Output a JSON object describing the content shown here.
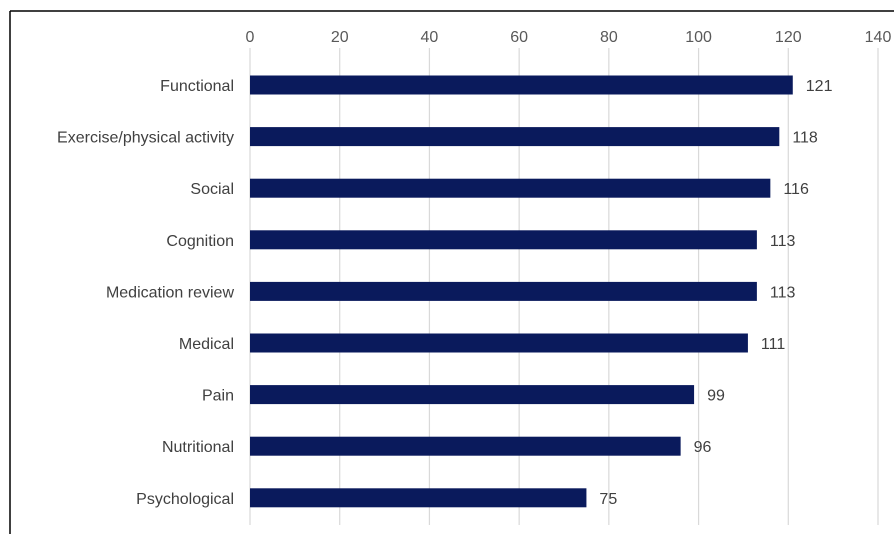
{
  "chart_data": {
    "type": "bar",
    "orientation": "horizontal",
    "categories": [
      "Functional",
      "Exercise/physical activity",
      "Social",
      "Cognition",
      "Medication review",
      "Medical",
      "Pain",
      "Nutritional",
      "Psychological"
    ],
    "values": [
      121,
      118,
      116,
      113,
      113,
      111,
      99,
      96,
      75
    ],
    "xlim": [
      0,
      140
    ],
    "xticks": [
      0,
      20,
      40,
      60,
      80,
      100,
      120,
      140
    ],
    "x_axis_position": "top",
    "grid": true,
    "data_labels": true,
    "bar_color": "#0a1a5c",
    "grid_color": "#d9d9d9"
  }
}
